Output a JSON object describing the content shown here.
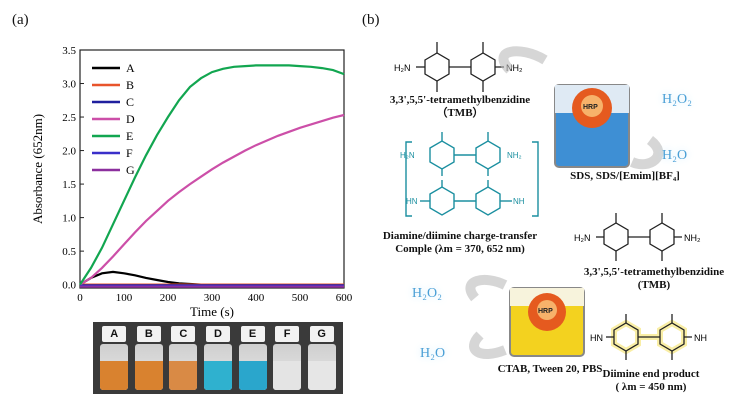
{
  "panel_labels": {
    "a": "(a)",
    "b": "(b)"
  },
  "chart_data": {
    "type": "line",
    "xlabel": "Time (s)",
    "ylabel": "Absorbance (652nm)",
    "xlim": [
      0,
      600
    ],
    "ylim": [
      -0.05,
      3.5
    ],
    "xticks": [
      0,
      100,
      200,
      300,
      400,
      500,
      600
    ],
    "yticks": [
      0.0,
      0.5,
      1.0,
      1.5,
      2.0,
      2.5,
      3.0,
      3.5
    ],
    "legend_position": "top-left",
    "grid": false,
    "x": [
      0,
      25,
      50,
      75,
      100,
      125,
      150,
      175,
      200,
      225,
      250,
      275,
      300,
      325,
      350,
      375,
      400,
      425,
      450,
      475,
      500,
      525,
      550,
      575,
      600
    ],
    "series": [
      {
        "name": "A",
        "color": "#000000",
        "values": [
          0.0,
          0.1,
          0.17,
          0.19,
          0.17,
          0.14,
          0.1,
          0.07,
          0.04,
          0.02,
          0.01,
          0.0,
          0.0,
          0.0,
          0.0,
          0.0,
          0.0,
          0.0,
          0.0,
          0.0,
          0.0,
          0.0,
          0.0,
          0.0,
          0.0
        ]
      },
      {
        "name": "B",
        "color": "#e8542b",
        "values": [
          0.0,
          0.0,
          0.0,
          0.0,
          0.0,
          0.0,
          0.0,
          0.0,
          0.0,
          0.0,
          0.0,
          0.0,
          0.0,
          0.0,
          0.0,
          0.0,
          0.0,
          0.0,
          0.0,
          0.0,
          0.0,
          0.0,
          0.0,
          0.0,
          0.0
        ]
      },
      {
        "name": "C",
        "color": "#1f1f9e",
        "values": [
          -0.01,
          -0.01,
          -0.01,
          -0.01,
          -0.01,
          -0.01,
          -0.01,
          -0.01,
          -0.01,
          -0.01,
          -0.01,
          -0.01,
          -0.01,
          -0.01,
          -0.01,
          -0.01,
          -0.01,
          -0.01,
          -0.01,
          -0.01,
          -0.01,
          -0.01,
          -0.01,
          -0.01,
          -0.01
        ]
      },
      {
        "name": "D",
        "color": "#cc4fa8",
        "values": [
          0.0,
          0.1,
          0.25,
          0.42,
          0.6,
          0.78,
          0.95,
          1.1,
          1.25,
          1.38,
          1.5,
          1.61,
          1.72,
          1.82,
          1.91,
          2.0,
          2.08,
          2.15,
          2.22,
          2.28,
          2.34,
          2.39,
          2.44,
          2.49,
          2.53
        ]
      },
      {
        "name": "E",
        "color": "#12a650",
        "values": [
          0.0,
          0.25,
          0.55,
          0.9,
          1.25,
          1.6,
          1.93,
          2.23,
          2.5,
          2.75,
          2.95,
          3.08,
          3.17,
          3.22,
          3.25,
          3.26,
          3.27,
          3.27,
          3.27,
          3.27,
          3.26,
          3.25,
          3.23,
          3.2,
          3.14
        ]
      },
      {
        "name": "F",
        "color": "#3a2fc9",
        "values": [
          -0.02,
          -0.02,
          -0.02,
          -0.02,
          -0.02,
          -0.02,
          -0.02,
          -0.02,
          -0.02,
          -0.02,
          -0.02,
          -0.02,
          -0.02,
          -0.02,
          -0.02,
          -0.02,
          -0.02,
          -0.02,
          -0.02,
          -0.02,
          -0.02,
          -0.02,
          -0.02,
          -0.02,
          -0.02
        ]
      },
      {
        "name": "G",
        "color": "#8c2f9e",
        "values": [
          -0.03,
          -0.03,
          -0.03,
          -0.03,
          -0.03,
          -0.03,
          -0.03,
          -0.03,
          -0.03,
          -0.03,
          -0.03,
          -0.03,
          -0.03,
          -0.03,
          -0.03,
          -0.03,
          -0.03,
          -0.03,
          -0.03,
          -0.03,
          -0.03,
          -0.03,
          -0.03,
          -0.03,
          -0.03
        ]
      }
    ]
  },
  "vials": [
    {
      "label": "A",
      "color": "#d9822f"
    },
    {
      "label": "B",
      "color": "#d9822f"
    },
    {
      "label": "C",
      "color": "#d98a45"
    },
    {
      "label": "D",
      "color": "#2fb1cf"
    },
    {
      "label": "E",
      "color": "#2aa6cc"
    },
    {
      "label": "F",
      "color": "#e4e4e4"
    },
    {
      "label": "G",
      "color": "#e6e6e6"
    }
  ],
  "scheme": {
    "tmb_top_name": "3,3',5,5'-tetramethylbenzidine",
    "tmb_top_abbr": "（TMB）",
    "ctc_name": "Diamine/diimine charge-transfer",
    "ctc_name2": "Comple (λm = 370, 652 nm)",
    "h2o2_top": "H₂O₂",
    "h2o_top": "H₂O",
    "enzyme": "HRP",
    "condition_top": "SDS, SDS/[Emim][BF₄]",
    "tmb_right_name": "3,3',5,5'-tetramethylbenzidine",
    "tmb_right_abbr": "(TMB)",
    "h2o2_bottom": "H₂O₂",
    "h2o_bottom": "H₂O",
    "condition_bottom": "CTAB, Tween 20, PBS",
    "diimine_name": "Diimine end product",
    "diimine_name2": "( λm = 450 nm)",
    "group_nh2": "NH₂",
    "group_h2n": "H₂N",
    "group_hn": "HN",
    "group_nh": "NH"
  }
}
